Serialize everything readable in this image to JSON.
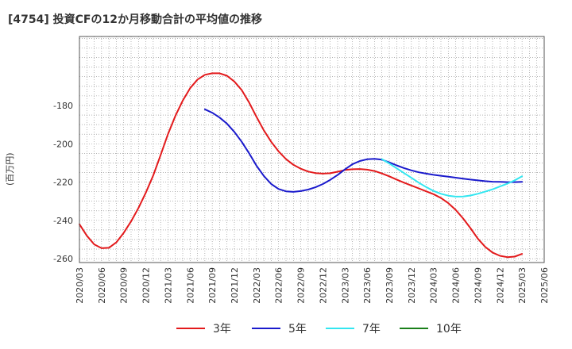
{
  "title": "[4754]  投資CFの12か月移動合計の平均値の推移",
  "chart_data": {
    "type": "line",
    "title": "[4754]  投資CFの12か月移動合計の平均値の推移",
    "ylabel": "(百万円)",
    "xlabel": "",
    "ylim": [
      -262,
      -144
    ],
    "yticks": [
      -180,
      -200,
      -220,
      -240,
      -260
    ],
    "xlim": [
      "2020/03",
      "2025/06"
    ],
    "xticks": [
      "2020/03",
      "2020/06",
      "2020/09",
      "2020/12",
      "2021/03",
      "2021/06",
      "2021/09",
      "2021/12",
      "2022/03",
      "2022/06",
      "2022/09",
      "2022/12",
      "2023/03",
      "2023/06",
      "2023/09",
      "2023/12",
      "2024/03",
      "2024/06",
      "2024/09",
      "2024/12",
      "2025/03",
      "2025/06"
    ],
    "grid": true,
    "legend_position": "bottom",
    "series": [
      {
        "name": "3年",
        "color": "#e31a1c",
        "points": [
          [
            "2020/03",
            -242
          ],
          [
            "2020/04",
            -248
          ],
          [
            "2020/05",
            -252.5
          ],
          [
            "2020/06",
            -254.5
          ],
          [
            "2020/07",
            -254.3
          ],
          [
            "2020/08",
            -251.5
          ],
          [
            "2020/09",
            -246.5
          ],
          [
            "2020/10",
            -240.5
          ],
          [
            "2020/11",
            -233.5
          ],
          [
            "2020/12",
            -225.5
          ],
          [
            "2021/01",
            -216.5
          ],
          [
            "2021/02",
            -206
          ],
          [
            "2021/03",
            -195
          ],
          [
            "2021/04",
            -185.5
          ],
          [
            "2021/05",
            -177.5
          ],
          [
            "2021/06",
            -171
          ],
          [
            "2021/07",
            -166.5
          ],
          [
            "2021/08",
            -164
          ],
          [
            "2021/09",
            -163.2
          ],
          [
            "2021/10",
            -163.2
          ],
          [
            "2021/11",
            -164.5
          ],
          [
            "2021/12",
            -167.5
          ],
          [
            "2022/01",
            -172
          ],
          [
            "2022/02",
            -178.5
          ],
          [
            "2022/03",
            -186
          ],
          [
            "2022/04",
            -193
          ],
          [
            "2022/05",
            -199
          ],
          [
            "2022/06",
            -204
          ],
          [
            "2022/07",
            -208
          ],
          [
            "2022/08",
            -211
          ],
          [
            "2022/09",
            -213
          ],
          [
            "2022/10",
            -214.5
          ],
          [
            "2022/11",
            -215.3
          ],
          [
            "2022/12",
            -215.6
          ],
          [
            "2023/01",
            -215.4
          ],
          [
            "2023/02",
            -214.6
          ],
          [
            "2023/03",
            -213.7
          ],
          [
            "2023/04",
            -213.3
          ],
          [
            "2023/05",
            -213.2
          ],
          [
            "2023/06",
            -213.5
          ],
          [
            "2023/07",
            -214.2
          ],
          [
            "2023/08",
            -215.5
          ],
          [
            "2023/09",
            -217
          ],
          [
            "2023/10",
            -218.7
          ],
          [
            "2023/11",
            -220.3
          ],
          [
            "2023/12",
            -221.8
          ],
          [
            "2024/01",
            -223.3
          ],
          [
            "2024/02",
            -224.8
          ],
          [
            "2024/03",
            -226.3
          ],
          [
            "2024/04",
            -228.3
          ],
          [
            "2024/05",
            -231
          ],
          [
            "2024/06",
            -234.5
          ],
          [
            "2024/07",
            -239
          ],
          [
            "2024/08",
            -244
          ],
          [
            "2024/09",
            -249.5
          ],
          [
            "2024/10",
            -253.8
          ],
          [
            "2024/11",
            -256.8
          ],
          [
            "2024/12",
            -258.5
          ],
          [
            "2025/01",
            -259.2
          ],
          [
            "2025/02",
            -258.9
          ],
          [
            "2025/03",
            -257.5
          ]
        ]
      },
      {
        "name": "5年",
        "color": "#1a1acc",
        "points": [
          [
            "2021/08",
            -182
          ],
          [
            "2021/09",
            -183.8
          ],
          [
            "2021/10",
            -186.3
          ],
          [
            "2021/11",
            -189.5
          ],
          [
            "2021/12",
            -193.8
          ],
          [
            "2022/01",
            -199
          ],
          [
            "2022/02",
            -205
          ],
          [
            "2022/03",
            -211.5
          ],
          [
            "2022/04",
            -216.8
          ],
          [
            "2022/05",
            -221
          ],
          [
            "2022/06",
            -223.6
          ],
          [
            "2022/07",
            -224.8
          ],
          [
            "2022/08",
            -225.1
          ],
          [
            "2022/09",
            -224.7
          ],
          [
            "2022/10",
            -223.9
          ],
          [
            "2022/11",
            -222.7
          ],
          [
            "2022/12",
            -221
          ],
          [
            "2023/01",
            -218.8
          ],
          [
            "2023/02",
            -216.3
          ],
          [
            "2023/03",
            -213.3
          ],
          [
            "2023/04",
            -210.7
          ],
          [
            "2023/05",
            -209
          ],
          [
            "2023/06",
            -208.1
          ],
          [
            "2023/07",
            -207.9
          ],
          [
            "2023/08",
            -208.3
          ],
          [
            "2023/09",
            -209.7
          ],
          [
            "2023/10",
            -211.3
          ],
          [
            "2023/11",
            -212.7
          ],
          [
            "2023/12",
            -213.9
          ],
          [
            "2024/01",
            -214.9
          ],
          [
            "2024/02",
            -215.6
          ],
          [
            "2024/03",
            -216.2
          ],
          [
            "2024/04",
            -216.7
          ],
          [
            "2024/05",
            -217.2
          ],
          [
            "2024/06",
            -217.7
          ],
          [
            "2024/07",
            -218.2
          ],
          [
            "2024/08",
            -218.7
          ],
          [
            "2024/09",
            -219.1
          ],
          [
            "2024/10",
            -219.5
          ],
          [
            "2024/11",
            -219.8
          ],
          [
            "2024/12",
            -219.9
          ],
          [
            "2025/01",
            -220
          ],
          [
            "2025/02",
            -220
          ],
          [
            "2025/03",
            -219.9
          ]
        ]
      },
      {
        "name": "7年",
        "color": "#33e6f0",
        "points": [
          [
            "2023/08",
            -208
          ],
          [
            "2023/09",
            -210.3
          ],
          [
            "2023/10",
            -212.8
          ],
          [
            "2023/11",
            -215.3
          ],
          [
            "2023/12",
            -217.8
          ],
          [
            "2024/01",
            -220.3
          ],
          [
            "2024/02",
            -222.6
          ],
          [
            "2024/03",
            -224.6
          ],
          [
            "2024/04",
            -226.1
          ],
          [
            "2024/05",
            -227.1
          ],
          [
            "2024/06",
            -227.6
          ],
          [
            "2024/07",
            -227.5
          ],
          [
            "2024/08",
            -227
          ],
          [
            "2024/09",
            -226.1
          ],
          [
            "2024/10",
            -225
          ],
          [
            "2024/11",
            -223.8
          ],
          [
            "2024/12",
            -222.3
          ],
          [
            "2025/01",
            -220.8
          ],
          [
            "2025/02",
            -219.1
          ],
          [
            "2025/03",
            -217
          ]
        ]
      },
      {
        "name": "10年",
        "color": "#1a7f1a",
        "points": []
      }
    ]
  }
}
